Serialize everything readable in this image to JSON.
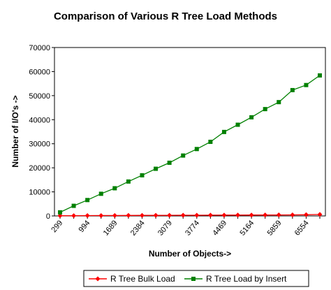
{
  "chart_data": {
    "type": "line",
    "title": "Comparison of Various R Tree Load Methods",
    "xlabel": "Number of Objects->",
    "ylabel": "Number of I/O's ->",
    "x_tick_labels": [
      "299",
      "994",
      "1689",
      "2384",
      "3079",
      "3774",
      "4469",
      "5164",
      "5859",
      "6554"
    ],
    "x": [
      299,
      646.5,
      994,
      1341.5,
      1689,
      2036.5,
      2384,
      2731.5,
      3079,
      3426.5,
      3774,
      4121.5,
      4469,
      4816.5,
      5164,
      5511.5,
      5859,
      6206.5,
      6554,
      6901.5
    ],
    "ylim": [
      0,
      70000
    ],
    "y_ticks": [
      0,
      10000,
      20000,
      30000,
      40000,
      50000,
      60000,
      70000
    ],
    "grid": false,
    "legend_position": "bottom",
    "series": [
      {
        "name": "R Tree Bulk Load",
        "color": "#ff0000",
        "marker": "diamond",
        "values": [
          100,
          120,
          140,
          160,
          180,
          200,
          220,
          240,
          260,
          280,
          300,
          320,
          340,
          360,
          380,
          400,
          420,
          440,
          500,
          600
        ]
      },
      {
        "name": "R Tree Load by Insert",
        "color": "#008000",
        "marker": "square",
        "values": [
          1500,
          4200,
          6600,
          9200,
          11500,
          14300,
          16900,
          19600,
          22100,
          25100,
          27800,
          30800,
          34900,
          37900,
          41000,
          44400,
          47300,
          52300,
          54400,
          58400
        ]
      }
    ]
  }
}
